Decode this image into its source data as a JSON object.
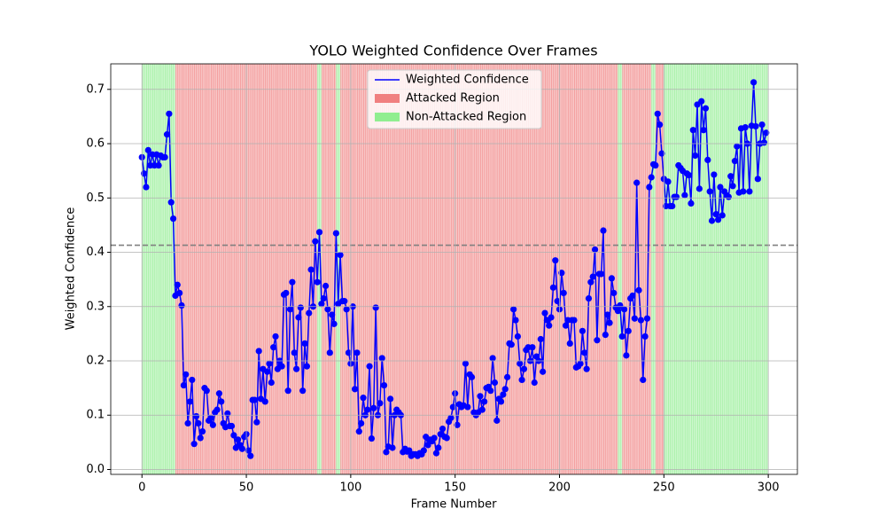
{
  "chart_data": {
    "type": "line",
    "title": "YOLO Weighted Confidence Over Frames",
    "x_label": "Frame Number",
    "y_label": "Weighted Confidence",
    "x": [
      0,
      1,
      2,
      3,
      4,
      5,
      6,
      7,
      8,
      9,
      10,
      11,
      12,
      13,
      14,
      15,
      16,
      17,
      18,
      19,
      20,
      21,
      22,
      23,
      24,
      25,
      26,
      27,
      28,
      29,
      30,
      31,
      32,
      33,
      34,
      35,
      36,
      37,
      38,
      39,
      40,
      41,
      42,
      43,
      44,
      45,
      46,
      47,
      48,
      49,
      50,
      51,
      52,
      53,
      54,
      55,
      56,
      57,
      58,
      59,
      60,
      61,
      62,
      63,
      64,
      65,
      66,
      67,
      68,
      69,
      70,
      71,
      72,
      73,
      74,
      75,
      76,
      77,
      78,
      79,
      80,
      81,
      82,
      83,
      84,
      85,
      86,
      87,
      88,
      89,
      90,
      91,
      92,
      93,
      94,
      95,
      96,
      97,
      98,
      99,
      100,
      101,
      102,
      103,
      104,
      105,
      106,
      107,
      108,
      109,
      110,
      111,
      112,
      113,
      114,
      115,
      116,
      117,
      118,
      119,
      120,
      121,
      122,
      123,
      124,
      125,
      126,
      127,
      128,
      129,
      130,
      131,
      132,
      133,
      134,
      135,
      136,
      137,
      138,
      139,
      140,
      141,
      142,
      143,
      144,
      145,
      146,
      147,
      148,
      149,
      150,
      151,
      152,
      153,
      154,
      155,
      156,
      157,
      158,
      159,
      160,
      161,
      162,
      163,
      164,
      165,
      166,
      167,
      168,
      169,
      170,
      171,
      172,
      173,
      174,
      175,
      176,
      177,
      178,
      179,
      180,
      181,
      182,
      183,
      184,
      185,
      186,
      187,
      188,
      189,
      190,
      191,
      192,
      193,
      194,
      195,
      196,
      197,
      198,
      199,
      200,
      201,
      202,
      203,
      204,
      205,
      206,
      207,
      208,
      209,
      210,
      211,
      212,
      213,
      214,
      215,
      216,
      217,
      218,
      219,
      220,
      221,
      222,
      223,
      224,
      225,
      226,
      227,
      228,
      229,
      230,
      231,
      232,
      233,
      234,
      235,
      236,
      237,
      238,
      239,
      240,
      241,
      242,
      243,
      244,
      245,
      246,
      247,
      248,
      249,
      250,
      251,
      252,
      253,
      254,
      255,
      256,
      257,
      258,
      259,
      260,
      261,
      262,
      263,
      264,
      265,
      266,
      267,
      268,
      269,
      270,
      271,
      272,
      273,
      274,
      275,
      276,
      277,
      278,
      279,
      280,
      281,
      282,
      283,
      284,
      285,
      286,
      287,
      288,
      289,
      290,
      291,
      292,
      293,
      294,
      295,
      296,
      297,
      298,
      299
    ],
    "series": [
      {
        "name": "Weighted Confidence",
        "color": "#0000ff",
        "values": [
          0.575,
          0.545,
          0.52,
          0.588,
          0.56,
          0.58,
          0.56,
          0.58,
          0.56,
          0.578,
          0.575,
          0.575,
          0.617,
          0.655,
          0.492,
          0.462,
          0.32,
          0.34,
          0.325,
          0.302,
          0.155,
          0.175,
          0.085,
          0.125,
          0.165,
          0.047,
          0.098,
          0.085,
          0.058,
          0.07,
          0.15,
          0.145,
          0.09,
          0.095,
          0.082,
          0.105,
          0.11,
          0.14,
          0.125,
          0.085,
          0.078,
          0.103,
          0.08,
          0.08,
          0.063,
          0.04,
          0.055,
          0.045,
          0.038,
          0.06,
          0.065,
          0.035,
          0.025,
          0.128,
          0.128,
          0.087,
          0.218,
          0.13,
          0.185,
          0.125,
          0.18,
          0.195,
          0.16,
          0.225,
          0.245,
          0.185,
          0.2,
          0.19,
          0.322,
          0.325,
          0.145,
          0.295,
          0.345,
          0.215,
          0.185,
          0.28,
          0.298,
          0.145,
          0.232,
          0.19,
          0.288,
          0.368,
          0.3,
          0.42,
          0.345,
          0.437,
          0.305,
          0.315,
          0.338,
          0.295,
          0.215,
          0.285,
          0.268,
          0.435,
          0.305,
          0.395,
          0.31,
          0.31,
          0.295,
          0.215,
          0.195,
          0.3,
          0.148,
          0.215,
          0.07,
          0.085,
          0.132,
          0.1,
          0.11,
          0.19,
          0.057,
          0.113,
          0.298,
          0.1,
          0.122,
          0.205,
          0.155,
          0.032,
          0.042,
          0.13,
          0.04,
          0.1,
          0.11,
          0.105,
          0.1,
          0.032,
          0.038,
          0.033,
          0.035,
          0.025,
          0.028,
          0.028,
          0.025,
          0.03,
          0.028,
          0.035,
          0.06,
          0.045,
          0.055,
          0.052,
          0.058,
          0.03,
          0.04,
          0.065,
          0.075,
          0.06,
          0.058,
          0.088,
          0.095,
          0.115,
          0.14,
          0.082,
          0.12,
          0.115,
          0.118,
          0.195,
          0.115,
          0.175,
          0.17,
          0.105,
          0.1,
          0.105,
          0.135,
          0.11,
          0.125,
          0.15,
          0.152,
          0.145,
          0.205,
          0.16,
          0.09,
          0.13,
          0.125,
          0.138,
          0.148,
          0.17,
          0.232,
          0.23,
          0.295,
          0.275,
          0.245,
          0.195,
          0.165,
          0.185,
          0.22,
          0.225,
          0.2,
          0.225,
          0.16,
          0.208,
          0.2,
          0.24,
          0.18,
          0.288,
          0.275,
          0.265,
          0.28,
          0.335,
          0.385,
          0.31,
          0.295,
          0.362,
          0.325,
          0.265,
          0.275,
          0.232,
          0.275,
          0.275,
          0.188,
          0.19,
          0.195,
          0.255,
          0.215,
          0.185,
          0.315,
          0.345,
          0.355,
          0.405,
          0.238,
          0.36,
          0.36,
          0.44,
          0.248,
          0.285,
          0.27,
          0.352,
          0.325,
          0.298,
          0.292,
          0.302,
          0.245,
          0.295,
          0.21,
          0.255,
          0.315,
          0.32,
          0.278,
          0.528,
          0.33,
          0.275,
          0.165,
          0.245,
          0.278,
          0.52,
          0.538,
          0.562,
          0.56,
          0.655,
          0.635,
          0.582,
          0.535,
          0.485,
          0.53,
          0.485,
          0.485,
          0.502,
          0.502,
          0.56,
          0.555,
          0.55,
          0.505,
          0.545,
          0.542,
          0.49,
          0.625,
          0.578,
          0.672,
          0.517,
          0.678,
          0.625,
          0.665,
          0.57,
          0.512,
          0.458,
          0.543,
          0.47,
          0.46,
          0.52,
          0.468,
          0.512,
          0.505,
          0.502,
          0.54,
          0.522,
          0.568,
          0.595,
          0.51,
          0.628,
          0.512,
          0.63,
          0.6,
          0.512,
          0.633,
          0.713,
          0.632,
          0.535,
          0.6,
          0.635,
          0.602,
          0.62
        ]
      }
    ],
    "regions": [
      {
        "name": "Attacked Region",
        "color": "#f08080",
        "spans": [
          [
            16,
            84
          ],
          [
            86,
            93
          ],
          [
            95,
            228
          ],
          [
            230,
            244
          ],
          [
            246,
            250
          ]
        ]
      },
      {
        "name": "Non-Attacked Region",
        "color": "#90ee90",
        "spans": [
          [
            0,
            16
          ],
          [
            84,
            86
          ],
          [
            93,
            95
          ],
          [
            228,
            230
          ],
          [
            244,
            246
          ],
          [
            250,
            300
          ]
        ]
      }
    ],
    "threshold": 0.413,
    "xlim": [
      -14.95,
      313.95
    ],
    "ylim": [
      -0.009,
      0.747
    ],
    "xticks": [
      0,
      50,
      100,
      150,
      200,
      250,
      300
    ],
    "yticks": [
      {
        "value": 0,
        "label": "0.0"
      },
      0.1,
      0.2,
      0.3,
      0.4,
      0.5,
      0.6,
      0.7
    ],
    "grid": true,
    "legend": "upper center"
  }
}
